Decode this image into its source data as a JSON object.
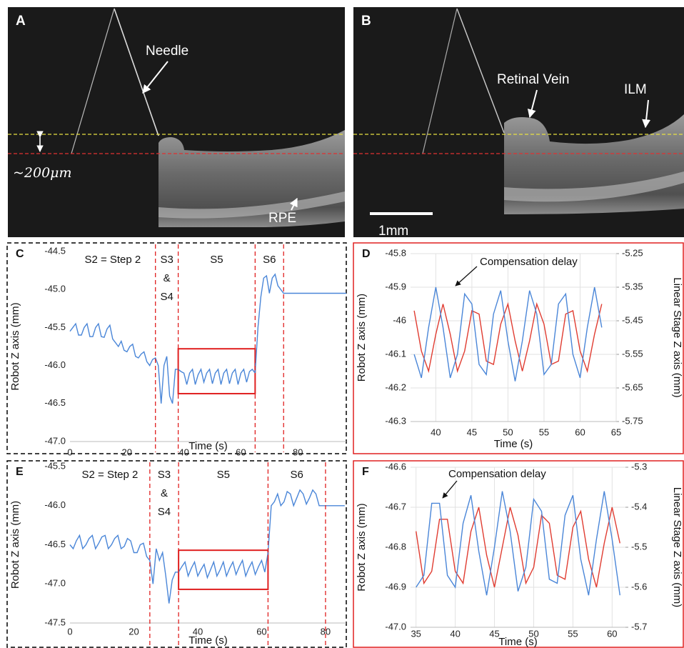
{
  "panels": [
    {
      "label": "A",
      "needle": "Needle",
      "spacing": "~200μm",
      "rpe": "RPE"
    },
    {
      "label": "B",
      "vein": "Retinal Vein",
      "ilm": "ILM",
      "scale_bar": "1mm"
    }
  ],
  "chart_data": [
    {
      "type": "line",
      "label": "C",
      "ylabel": "Robot Z axis (mm)",
      "xlabel": "Time (s)",
      "frame_color": "#000000",
      "frame_dashed": true,
      "grid": false,
      "xlim": [
        0,
        97
      ],
      "xticks": [
        0,
        20,
        40,
        60,
        80
      ],
      "ylim": [
        -47,
        -44.5
      ],
      "yticks": [
        {
          "value": -47,
          "label": "-47.0"
        },
        -46.5,
        {
          "value": -46,
          "label": "-46.0"
        },
        -45.5,
        {
          "value": -45,
          "label": "-45.0"
        },
        -44.5
      ],
      "vlines": [
        30,
        38,
        65,
        75
      ],
      "vline_color": "#e02020",
      "stage_labels": [
        [
          "S2 = Step 2"
        ],
        [
          "S3",
          "&",
          "S4"
        ],
        [
          "S5"
        ],
        [
          "S6"
        ]
      ],
      "highlight": {
        "x": [
          38,
          65
        ],
        "y": [
          -46.37,
          -45.78
        ],
        "color": "#e02020"
      },
      "x": [
        0,
        1,
        2,
        3,
        4,
        5,
        6,
        7,
        8,
        9,
        10,
        11,
        12,
        13,
        14,
        15,
        16,
        17,
        18,
        19,
        20,
        21,
        22,
        23,
        24,
        25,
        26,
        27,
        28,
        29,
        30,
        31,
        32,
        33,
        34,
        35,
        36,
        37,
        38,
        39,
        40,
        41,
        42,
        43,
        44,
        45,
        46,
        47,
        48,
        49,
        50,
        51,
        52,
        53,
        54,
        55,
        56,
        57,
        58,
        59,
        60,
        61,
        62,
        63,
        64,
        65,
        66,
        67,
        68,
        69,
        70,
        71,
        72,
        73,
        74,
        75,
        76,
        97
      ],
      "series": [
        {
          "color": "#4a86d8",
          "values": [
            -45.55,
            -45.5,
            -45.45,
            -45.6,
            -45.6,
            -45.5,
            -45.45,
            -45.62,
            -45.62,
            -45.5,
            -45.45,
            -45.62,
            -45.63,
            -45.52,
            -45.47,
            -45.65,
            -45.7,
            -45.75,
            -45.68,
            -45.8,
            -45.82,
            -45.75,
            -45.72,
            -45.88,
            -45.9,
            -45.85,
            -45.82,
            -45.95,
            -46.0,
            -45.92,
            -45.9,
            -46.0,
            -46.5,
            -46.0,
            -45.88,
            -46.4,
            -46.5,
            -46.05,
            -46.05,
            -46.08,
            -46.1,
            -46.25,
            -46.1,
            -46.05,
            -46.25,
            -46.12,
            -46.05,
            -46.22,
            -46.1,
            -46.05,
            -46.24,
            -46.1,
            -46.05,
            -46.25,
            -46.1,
            -46.05,
            -46.24,
            -46.1,
            -46.05,
            -46.25,
            -46.1,
            -46.05,
            -46.22,
            -46.08,
            -46.05,
            -46.1,
            -45.5,
            -45.1,
            -44.85,
            -44.82,
            -45.05,
            -44.85,
            -44.8,
            -44.95,
            -45.0,
            -45.05,
            -45.05,
            -45.05
          ]
        }
      ]
    },
    {
      "type": "line",
      "label": "D",
      "ylabel": "Robot Z axis (mm)",
      "y2label": "Linear Stage Z axis (mm)",
      "xlabel": "Time (s)",
      "frame_color": "#e02020",
      "frame_dashed": false,
      "grid": true,
      "annotation": "Compensation delay",
      "xlim": [
        36.5,
        65
      ],
      "xticks": [
        40,
        45,
        50,
        55,
        60,
        65
      ],
      "ylim": [
        -46.3,
        -45.8
      ],
      "yticks": [
        -46.3,
        -46.2,
        -46.1,
        -46,
        -45.9,
        -45.8
      ],
      "y2lim": [
        -5.75,
        -5.25
      ],
      "y2ticks": [
        -5.75,
        -5.65,
        -5.55,
        -5.45,
        -5.35,
        -5.25
      ],
      "x": [
        37,
        38,
        39,
        40,
        41,
        42,
        43,
        44,
        45,
        46,
        47,
        48,
        49,
        50,
        51,
        52,
        53,
        54,
        55,
        56,
        57,
        58,
        59,
        60,
        61,
        62,
        63
      ],
      "series": [
        {
          "color": "#e03c31",
          "axis": "y2",
          "values": [
            -5.42,
            -5.54,
            -5.6,
            -5.49,
            -5.4,
            -5.49,
            -5.6,
            -5.54,
            -5.42,
            -5.43,
            -5.57,
            -5.58,
            -5.46,
            -5.4,
            -5.51,
            -5.6,
            -5.51,
            -5.4,
            -5.46,
            -5.58,
            -5.57,
            -5.43,
            -5.42,
            -5.54,
            -5.6,
            -5.49,
            -5.4
          ]
        },
        {
          "color": "#4a86d8",
          "values": [
            -46.1,
            -46.17,
            -46.02,
            -45.9,
            -46.02,
            -46.17,
            -46.1,
            -45.92,
            -45.95,
            -46.13,
            -46.16,
            -45.98,
            -45.91,
            -46.06,
            -46.18,
            -46.06,
            -45.91,
            -45.98,
            -46.16,
            -46.13,
            -45.95,
            -45.92,
            -46.1,
            -46.17,
            -46.02,
            -45.9,
            -46.02
          ]
        }
      ]
    },
    {
      "type": "line",
      "label": "E",
      "ylabel": "Robot Z axis (mm)",
      "xlabel": "Time (s)",
      "frame_color": "#000000",
      "frame_dashed": true,
      "grid": false,
      "xlim": [
        0,
        86.5
      ],
      "xticks": [
        0,
        20,
        40,
        60,
        80
      ],
      "ylim": [
        -47.5,
        -45.5
      ],
      "yticks": [
        -47.5,
        {
          "value": -47,
          "label": "-47.0"
        },
        -46.5,
        {
          "value": -46,
          "label": "-46.0"
        },
        -45.5
      ],
      "vlines": [
        25,
        34,
        62,
        80
      ],
      "vline_color": "#e02020",
      "stage_labels": [
        [
          "S2 = Step 2"
        ],
        [
          "S3",
          "&",
          "S4"
        ],
        [
          "S5"
        ],
        [
          "S6"
        ]
      ],
      "highlight": {
        "x": [
          34,
          62
        ],
        "y": [
          -47.07,
          -46.57
        ],
        "color": "#e02020"
      },
      "x": [
        0,
        1,
        2,
        3,
        4,
        5,
        6,
        7,
        8,
        9,
        10,
        11,
        12,
        13,
        14,
        15,
        16,
        17,
        18,
        19,
        20,
        21,
        22,
        23,
        24,
        25,
        26,
        27,
        28,
        29,
        30,
        31,
        32,
        33,
        34,
        35,
        36,
        37,
        38,
        39,
        40,
        41,
        42,
        43,
        44,
        45,
        46,
        47,
        48,
        49,
        50,
        51,
        52,
        53,
        54,
        55,
        56,
        57,
        58,
        59,
        60,
        61,
        62,
        63,
        64,
        65,
        66,
        67,
        68,
        69,
        70,
        71,
        72,
        73,
        74,
        75,
        76,
        77,
        78,
        79,
        86
      ],
      "series": [
        {
          "color": "#4a86d8",
          "values": [
            -46.5,
            -46.55,
            -46.45,
            -46.38,
            -46.55,
            -46.5,
            -46.42,
            -46.38,
            -46.55,
            -46.48,
            -46.4,
            -46.38,
            -46.55,
            -46.5,
            -46.42,
            -46.38,
            -46.55,
            -46.52,
            -46.42,
            -46.45,
            -46.6,
            -46.6,
            -46.5,
            -46.48,
            -46.65,
            -46.7,
            -47.0,
            -46.55,
            -46.7,
            -46.6,
            -46.9,
            -47.25,
            -46.95,
            -46.85,
            -46.85,
            -46.78,
            -46.72,
            -46.9,
            -46.8,
            -46.72,
            -46.9,
            -46.82,
            -46.75,
            -46.92,
            -46.82,
            -46.72,
            -46.9,
            -46.82,
            -46.72,
            -46.9,
            -46.8,
            -46.72,
            -46.88,
            -46.78,
            -46.7,
            -46.9,
            -46.8,
            -46.72,
            -46.88,
            -46.78,
            -46.7,
            -46.85,
            -46.6,
            -46.0,
            -45.95,
            -45.85,
            -46.0,
            -45.95,
            -45.82,
            -45.85,
            -46.0,
            -45.9,
            -45.8,
            -45.85,
            -45.98,
            -45.9,
            -45.8,
            -45.85,
            -46.0,
            -46.0,
            -46.0
          ]
        }
      ]
    },
    {
      "type": "line",
      "label": "F",
      "ylabel": "Robot Z axis (mm)",
      "y2label": "Linear Stage Z axis (mm)",
      "xlabel": "Time (s)",
      "frame_color": "#e02020",
      "frame_dashed": false,
      "grid": true,
      "annotation": "Compensation delay",
      "xlim": [
        34.3,
        61.7
      ],
      "xticks": [
        35,
        40,
        45,
        50,
        55,
        60
      ],
      "ylim": [
        -47,
        -46.6
      ],
      "yticks": [
        {
          "value": -47,
          "label": "-47.0"
        },
        -46.9,
        -46.8,
        -46.7,
        -46.6
      ],
      "y2lim": [
        -5.7,
        -5.3
      ],
      "y2ticks": [
        -5.7,
        -5.6,
        -5.5,
        -5.4,
        -5.3
      ],
      "x": [
        35,
        36,
        37,
        38,
        39,
        40,
        41,
        42,
        43,
        44,
        45,
        46,
        47,
        48,
        49,
        50,
        51,
        52,
        53,
        54,
        55,
        56,
        57,
        58,
        59,
        60,
        61
      ],
      "series": [
        {
          "color": "#e03c31",
          "axis": "y2",
          "values": [
            -5.46,
            -5.59,
            -5.56,
            -5.43,
            -5.43,
            -5.56,
            -5.59,
            -5.46,
            -5.4,
            -5.52,
            -5.6,
            -5.5,
            -5.4,
            -5.47,
            -5.59,
            -5.55,
            -5.42,
            -5.44,
            -5.57,
            -5.58,
            -5.45,
            -5.41,
            -5.53,
            -5.6,
            -5.49,
            -5.4,
            -5.49
          ]
        },
        {
          "color": "#4a86d8",
          "values": [
            -46.9,
            -46.87,
            -46.69,
            -46.69,
            -46.87,
            -46.9,
            -46.74,
            -46.67,
            -46.81,
            -46.92,
            -46.8,
            -46.66,
            -46.76,
            -46.91,
            -46.85,
            -46.68,
            -46.71,
            -46.88,
            -46.89,
            -46.72,
            -46.67,
            -46.83,
            -46.92,
            -46.78,
            -46.66,
            -46.78,
            -46.92
          ]
        }
      ]
    }
  ]
}
